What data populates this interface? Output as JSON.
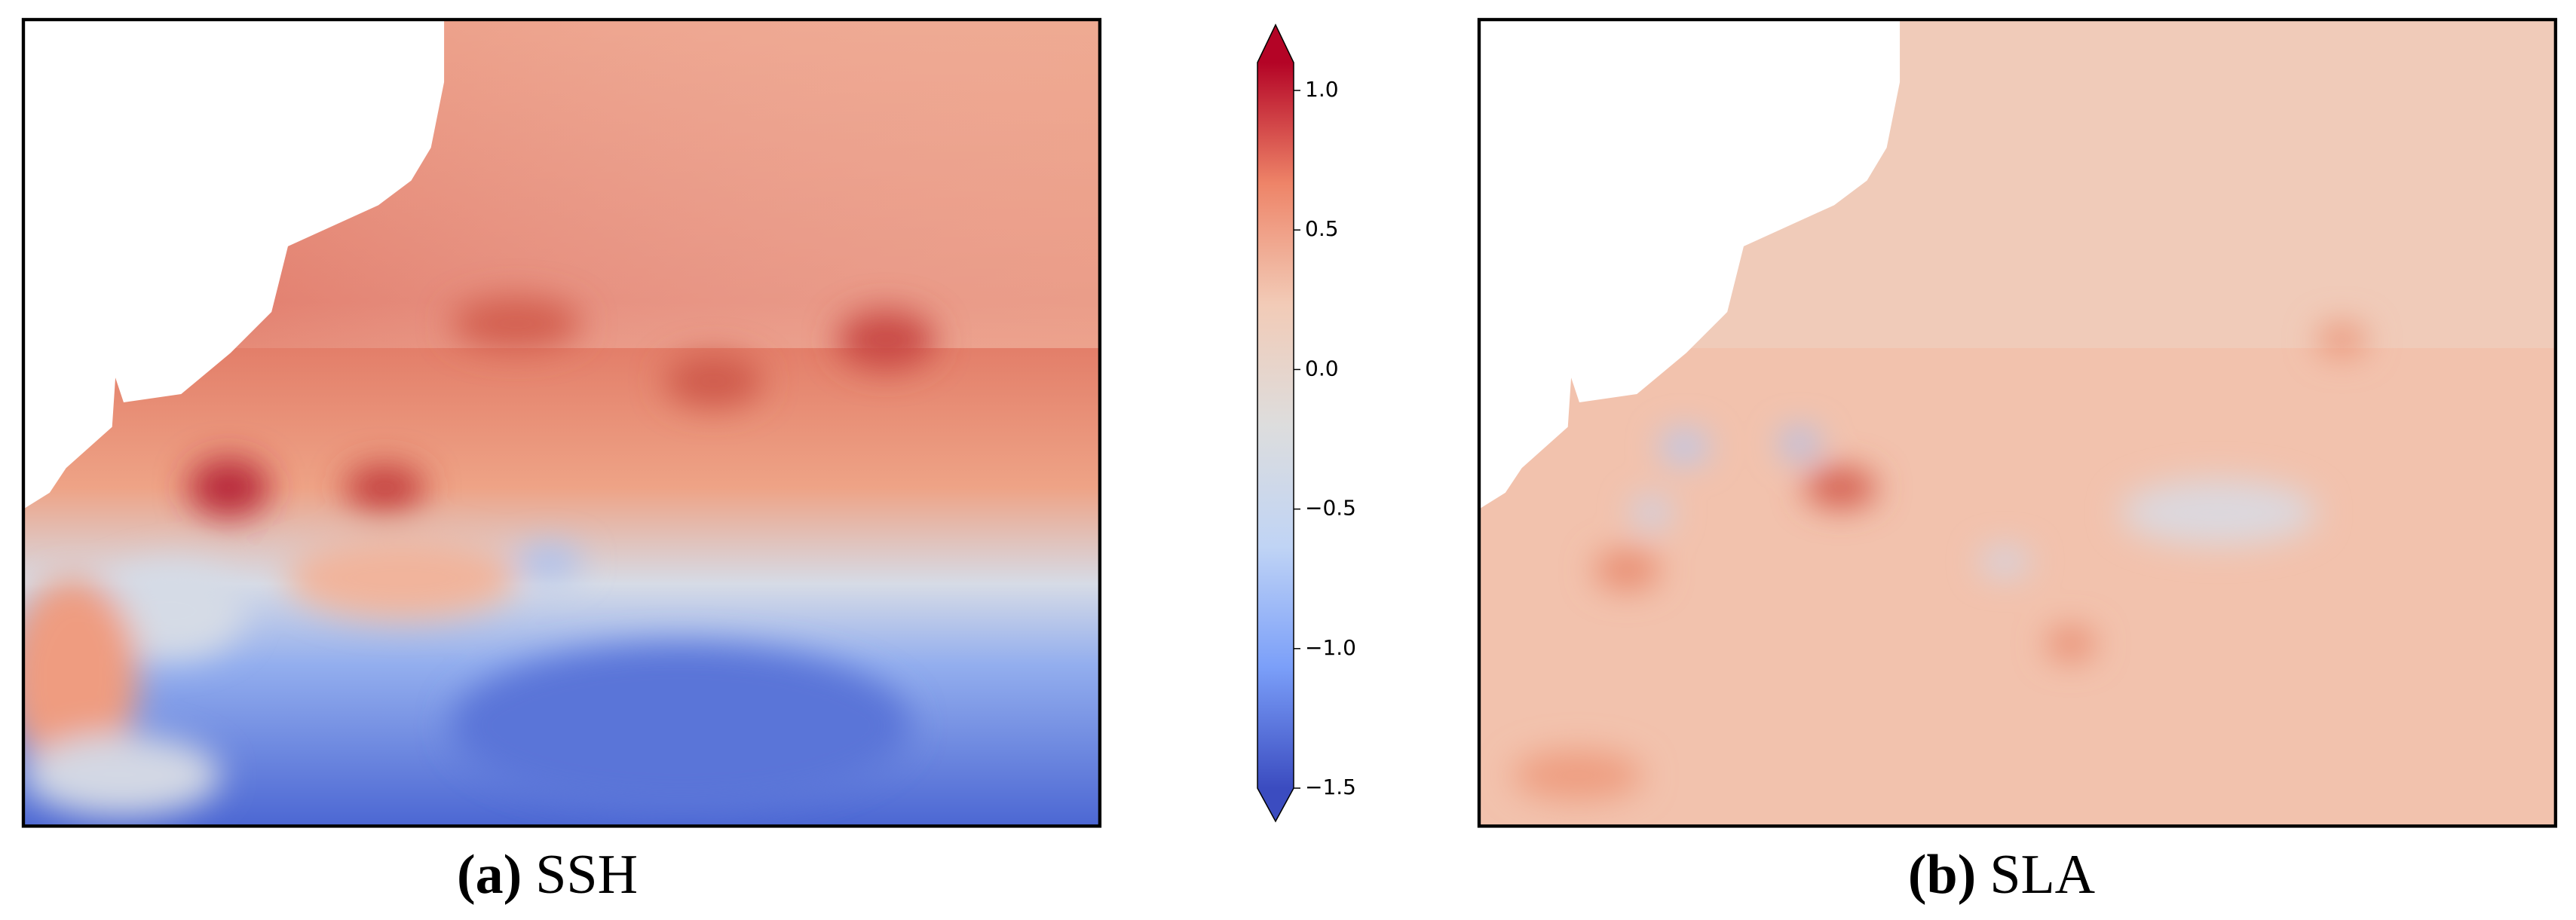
{
  "chart_data": {
    "type": "colorbar-figure",
    "panels": [
      {
        "label": "(a)",
        "title": "SSH"
      },
      {
        "label": "(b)",
        "title": "SLA"
      }
    ],
    "colorbar": {
      "colormap": "coolwarm",
      "clim": [
        -1.5,
        1.1
      ],
      "extend": "both",
      "colors": [
        "#3b4cc0",
        "#7b9ff9",
        "#c0d4f5",
        "#dddddd",
        "#f2cbb7",
        "#ee8468",
        "#b40426"
      ],
      "ticks": [
        {
          "value": -1.5,
          "label": "−1.5"
        },
        {
          "value": -1,
          "label": "−1.0"
        },
        {
          "value": -0.5,
          "label": "−0.5"
        },
        {
          "value": 0,
          "label": "0.0"
        },
        0.5,
        {
          "value": 1,
          "label": "1.0"
        }
      ]
    }
  }
}
